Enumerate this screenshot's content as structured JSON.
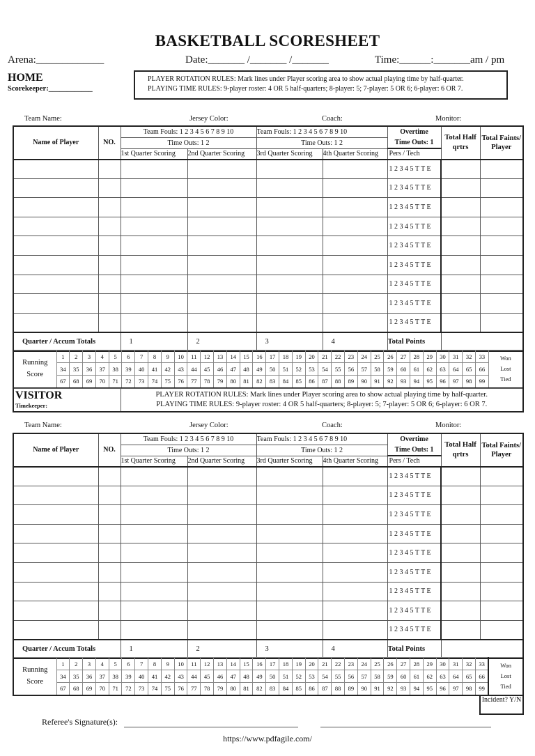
{
  "title": "BASKETBALL SCORESHEET",
  "header": {
    "arena": "Arena:_____________",
    "date": "Date:_______ /_______ /_______",
    "time": "Time:______:_______am / pm"
  },
  "home": {
    "label": "HOME",
    "scorekeeper": "Scorekeeper:____________"
  },
  "rules": {
    "rotation": "PLAYER ROTATION RULES: Mark lines under Player scoring area to show actual playing time by half-quarter.",
    "playing_time": "PLAYING TIME RULES: 9-player roster:  4 OR 5 half-quarters;  8-player: 5;  7-player: 5 OR 6;  6-player: 6 OR 7."
  },
  "team_info": {
    "team_name": "Team Name:",
    "jersey_color": "Jersey Color:",
    "coach": "Coach:",
    "monitor": "Monitor:"
  },
  "table_header": {
    "name": "Name of Player",
    "no": "NO.",
    "team_fouls": "Team Fouls: 1 2 3 4 5 6 7 8 9 10",
    "time_outs": "Time Outs: 1 2",
    "q1": "1st Quarter Scoring",
    "q2": "2nd Quarter Scoring",
    "q3": "3rd Quarter Scoring",
    "q4": "4th Quarter Scoring",
    "overtime": "Overtime",
    "ot_timeouts": "Time Outs: 1",
    "pers_tech": "Pers / Tech",
    "total_half": "Total Half qrtrs",
    "total_faints": "Total Faints/ Player"
  },
  "ot_marks": [
    "1 2 3 4 5 T T E",
    "1 2 3 4 5 T T E",
    "1 2 3 4 5 T T E",
    "1 2 3 4 5 T T E",
    "1 2 3 4 5 T T E",
    "1 2 3 4 5 T T E",
    "1 2 3 4 5 T T E",
    "1 2 3 4 5 T T E",
    "1 2 3 4 5 T T E"
  ],
  "totals": {
    "label": "Quarter / Accum Totals",
    "q1": "1",
    "q2": "2",
    "q3": "3",
    "q4": "4",
    "total_points": "Total Points"
  },
  "running_score": {
    "label": "Running Score",
    "won": "Won",
    "lost": "Lost",
    "tied": "Tied",
    "rows": [
      [
        1,
        2,
        3,
        4,
        5,
        6,
        7,
        8,
        9,
        10,
        11,
        12,
        13,
        14,
        15,
        16,
        17,
        18,
        19,
        20,
        21,
        22,
        23,
        24,
        25,
        26,
        27,
        28,
        29,
        30,
        31,
        32,
        33
      ],
      [
        34,
        35,
        36,
        37,
        38,
        39,
        40,
        41,
        42,
        43,
        44,
        45,
        46,
        47,
        48,
        49,
        50,
        51,
        52,
        53,
        54,
        55,
        56,
        57,
        58,
        59,
        60,
        61,
        62,
        63,
        64,
        65,
        66
      ],
      [
        67,
        68,
        69,
        70,
        71,
        72,
        73,
        74,
        75,
        76,
        77,
        78,
        79,
        80,
        81,
        82,
        83,
        84,
        85,
        86,
        87,
        88,
        89,
        90,
        91,
        92,
        93,
        94,
        95,
        96,
        97,
        98,
        99
      ]
    ]
  },
  "visitor": {
    "label": "VISITOR",
    "timekeeper": "Timekeeper:"
  },
  "incident": "Incident? Y/N",
  "referee": "Referee's Signature(s):",
  "url": "https://www.pdfagile.com/"
}
